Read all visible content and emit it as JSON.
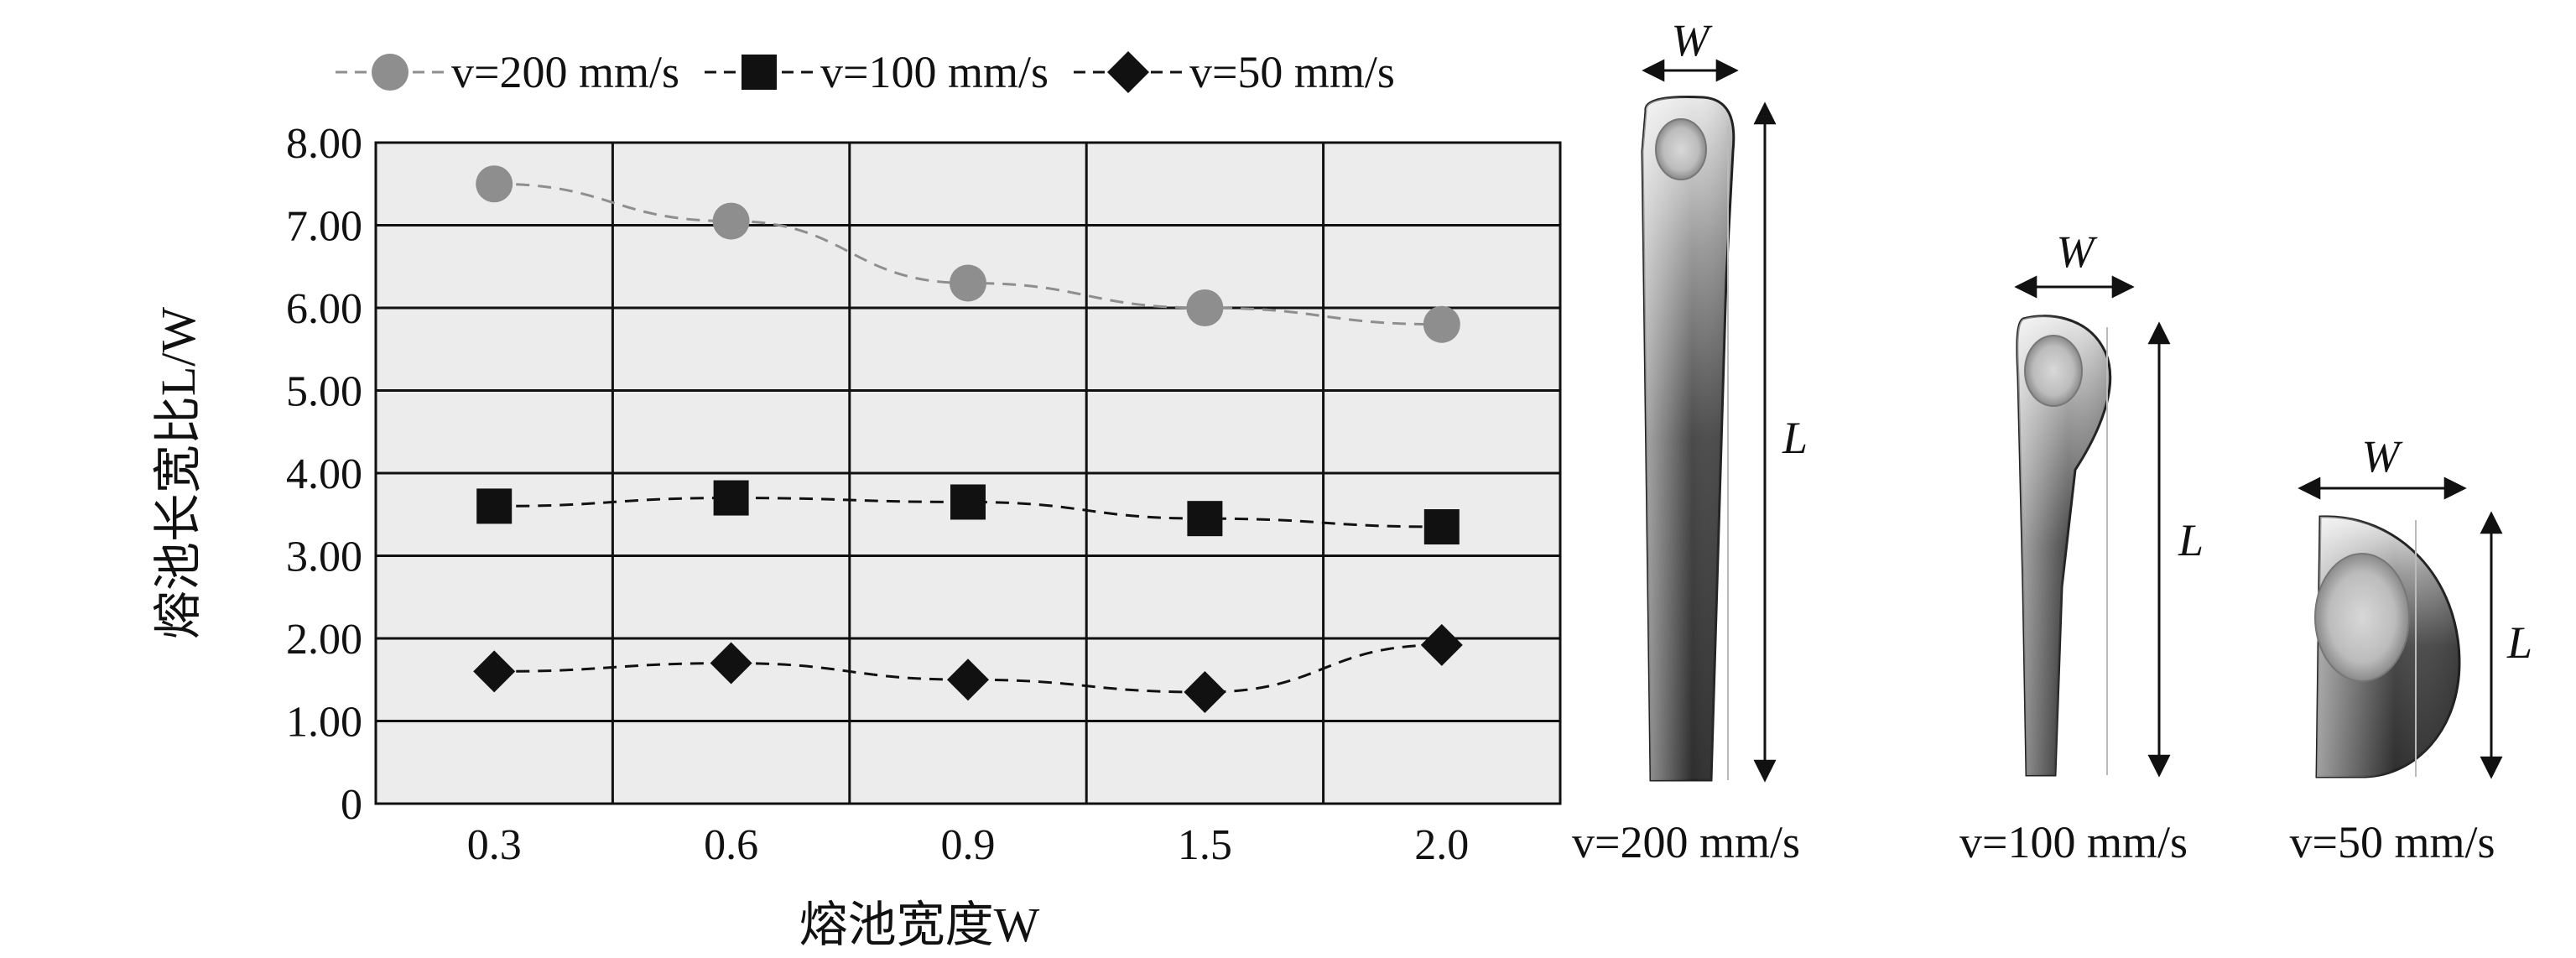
{
  "chart_data": {
    "type": "line",
    "title": "",
    "xlabel": "熔池宽度W",
    "ylabel": "熔池长宽比L/W",
    "categories": [
      "0.3",
      "0.6",
      "0.9",
      "1.5",
      "2.0"
    ],
    "ylim": [
      0,
      8
    ],
    "yticks": [
      "0",
      "1.00",
      "2.00",
      "3.00",
      "4.00",
      "5.00",
      "6.00",
      "7.00",
      "8.00"
    ],
    "grid": true,
    "legend_position": "top",
    "series": [
      {
        "name": "v=200 mm/s",
        "marker": "circle",
        "color": "#8e8e8e",
        "values": [
          7.5,
          7.05,
          6.3,
          6.0,
          5.8
        ]
      },
      {
        "name": "v=100 mm/s",
        "marker": "square",
        "color": "#111111",
        "values": [
          3.6,
          3.7,
          3.65,
          3.45,
          3.35
        ]
      },
      {
        "name": "v=50 mm/s",
        "marker": "diamond",
        "color": "#111111",
        "values": [
          1.6,
          1.7,
          1.5,
          1.35,
          1.92
        ]
      }
    ]
  },
  "melt_pools": [
    {
      "caption": "v=200 mm/s",
      "width_label": "W",
      "length_label": "L"
    },
    {
      "caption": "v=100 mm/s",
      "width_label": "W",
      "length_label": "L"
    },
    {
      "caption": "v=50 mm/s",
      "width_label": "W",
      "length_label": "L"
    }
  ]
}
